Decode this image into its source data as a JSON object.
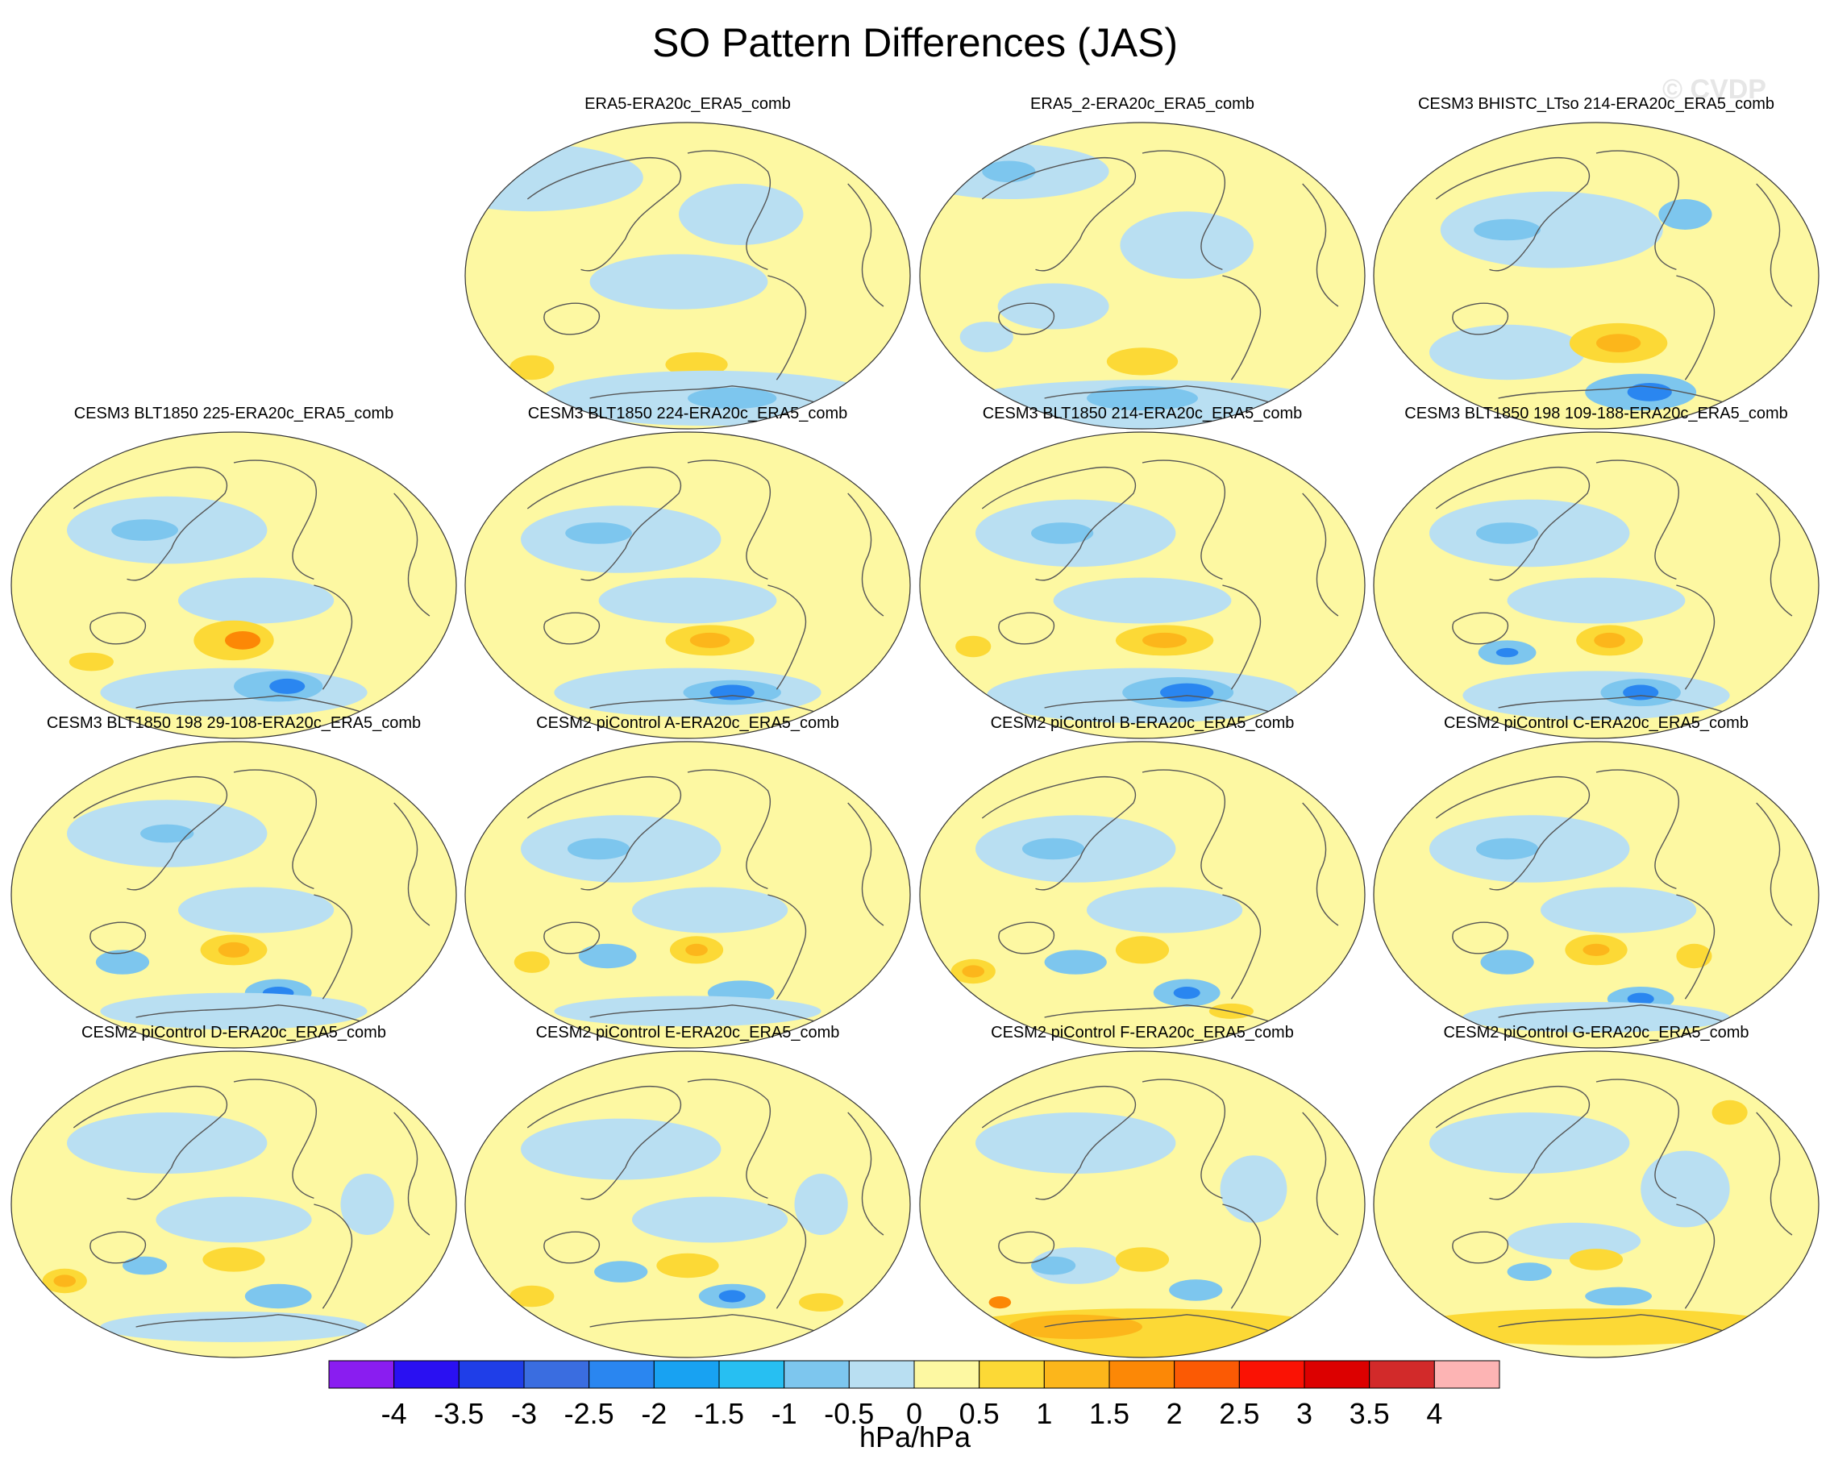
{
  "title": "SO Pattern Differences (JAS)",
  "watermark": "© CVDP",
  "colorbar": {
    "units": "hPa/hPa",
    "levels": [
      "-4",
      "-3.5",
      "-3",
      "-2.5",
      "-2",
      "-1.5",
      "-1",
      "-0.5",
      "0",
      "0.5",
      "1",
      "1.5",
      "2",
      "2.5",
      "3",
      "3.5",
      "4"
    ],
    "colors": [
      "#8a1df0",
      "#2a10f2",
      "#1f3ee8",
      "#3a6de0",
      "#2a86f0",
      "#18a2f2",
      "#27bff2",
      "#7dc6ee",
      "#b9dff2",
      "#fdf8a2",
      "#fcd936",
      "#fcb61b",
      "#fc8806",
      "#fb5a04",
      "#fa1204",
      "#dc0000",
      "#d22a2a",
      "#fdb4b4"
    ]
  },
  "panels": [
    {
      "title": "ERA5-ERA20c_ERA5_comb",
      "col": 1,
      "row": 0,
      "blobs": [
        [
          "#b9dff2",
          0.15,
          0.18,
          0.5,
          0.22
        ],
        [
          "#b9dff2",
          0.62,
          0.3,
          0.28,
          0.2
        ],
        [
          "#b9dff2",
          0.48,
          0.52,
          0.4,
          0.18
        ],
        [
          "#fcd936",
          0.52,
          0.79,
          0.14,
          0.08
        ],
        [
          "#b9dff2",
          0.55,
          0.9,
          0.75,
          0.18
        ],
        [
          "#7dc6ee",
          0.6,
          0.9,
          0.2,
          0.07
        ],
        [
          "#fcd936",
          0.15,
          0.8,
          0.1,
          0.08
        ]
      ]
    },
    {
      "title": "ERA5_2-ERA20c_ERA5_comb",
      "col": 2,
      "row": 0,
      "blobs": [
        [
          "#b9dff2",
          0.2,
          0.16,
          0.45,
          0.18
        ],
        [
          "#7dc6ee",
          0.2,
          0.16,
          0.12,
          0.07
        ],
        [
          "#b9dff2",
          0.6,
          0.4,
          0.3,
          0.22
        ],
        [
          "#b9dff2",
          0.3,
          0.6,
          0.25,
          0.15
        ],
        [
          "#fcd936",
          0.5,
          0.78,
          0.16,
          0.09
        ],
        [
          "#b9dff2",
          0.5,
          0.92,
          0.85,
          0.16
        ],
        [
          "#7dc6ee",
          0.5,
          0.9,
          0.25,
          0.08
        ],
        [
          "#b9dff2",
          0.15,
          0.7,
          0.12,
          0.1
        ]
      ]
    },
    {
      "title": "CESM3 BHISTC_LTso 214-ERA20c_ERA5_comb",
      "col": 3,
      "row": 0,
      "blobs": [
        [
          "#b9dff2",
          0.4,
          0.35,
          0.5,
          0.25
        ],
        [
          "#7dc6ee",
          0.3,
          0.35,
          0.15,
          0.07
        ],
        [
          "#7dc6ee",
          0.7,
          0.3,
          0.12,
          0.1
        ],
        [
          "#b9dff2",
          0.3,
          0.75,
          0.35,
          0.18
        ],
        [
          "#fcd936",
          0.55,
          0.72,
          0.22,
          0.13
        ],
        [
          "#fcb61b",
          0.55,
          0.72,
          0.1,
          0.06
        ],
        [
          "#7dc6ee",
          0.6,
          0.88,
          0.25,
          0.12
        ],
        [
          "#2a86f0",
          0.62,
          0.88,
          0.1,
          0.06
        ]
      ]
    },
    {
      "title": "CESM3 BLT1850 225-ERA20c_ERA5_comb",
      "col": 0,
      "row": 1,
      "blobs": [
        [
          "#b9dff2",
          0.35,
          0.32,
          0.45,
          0.22
        ],
        [
          "#7dc6ee",
          0.3,
          0.32,
          0.15,
          0.07
        ],
        [
          "#b9dff2",
          0.55,
          0.55,
          0.35,
          0.15
        ],
        [
          "#fcd936",
          0.5,
          0.68,
          0.18,
          0.13
        ],
        [
          "#fc8806",
          0.52,
          0.68,
          0.08,
          0.06
        ],
        [
          "#b9dff2",
          0.5,
          0.85,
          0.6,
          0.16
        ],
        [
          "#7dc6ee",
          0.6,
          0.83,
          0.2,
          0.1
        ],
        [
          "#2a86f0",
          0.62,
          0.83,
          0.08,
          0.05
        ],
        [
          "#fcd936",
          0.18,
          0.75,
          0.1,
          0.06
        ]
      ]
    },
    {
      "title": "CESM3 BLT1850 224-ERA20c_ERA5_comb",
      "col": 1,
      "row": 1,
      "blobs": [
        [
          "#b9dff2",
          0.35,
          0.35,
          0.45,
          0.22
        ],
        [
          "#7dc6ee",
          0.3,
          0.33,
          0.15,
          0.07
        ],
        [
          "#b9dff2",
          0.5,
          0.55,
          0.4,
          0.15
        ],
        [
          "#fcd936",
          0.55,
          0.68,
          0.2,
          0.1
        ],
        [
          "#fcb61b",
          0.55,
          0.68,
          0.09,
          0.05
        ],
        [
          "#b9dff2",
          0.5,
          0.85,
          0.6,
          0.16
        ],
        [
          "#7dc6ee",
          0.6,
          0.85,
          0.22,
          0.08
        ],
        [
          "#2a86f0",
          0.6,
          0.85,
          0.1,
          0.05
        ]
      ]
    },
    {
      "title": "CESM3 BLT1850 214-ERA20c_ERA5_comb",
      "col": 2,
      "row": 1,
      "blobs": [
        [
          "#b9dff2",
          0.35,
          0.33,
          0.45,
          0.22
        ],
        [
          "#7dc6ee",
          0.32,
          0.33,
          0.14,
          0.07
        ],
        [
          "#b9dff2",
          0.5,
          0.55,
          0.4,
          0.15
        ],
        [
          "#fcd936",
          0.55,
          0.68,
          0.22,
          0.1
        ],
        [
          "#fcb61b",
          0.55,
          0.68,
          0.1,
          0.05
        ],
        [
          "#b9dff2",
          0.5,
          0.86,
          0.7,
          0.18
        ],
        [
          "#7dc6ee",
          0.58,
          0.85,
          0.25,
          0.1
        ],
        [
          "#2a86f0",
          0.6,
          0.85,
          0.12,
          0.06
        ],
        [
          "#fcd936",
          0.12,
          0.7,
          0.08,
          0.07
        ]
      ]
    },
    {
      "title": "CESM3 BLT1850 198 109-188-ERA20c_ERA5_comb",
      "col": 3,
      "row": 1,
      "blobs": [
        [
          "#b9dff2",
          0.35,
          0.33,
          0.45,
          0.22
        ],
        [
          "#7dc6ee",
          0.3,
          0.33,
          0.14,
          0.07
        ],
        [
          "#b9dff2",
          0.5,
          0.55,
          0.4,
          0.15
        ],
        [
          "#7dc6ee",
          0.3,
          0.72,
          0.13,
          0.08
        ],
        [
          "#2a86f0",
          0.3,
          0.72,
          0.05,
          0.03
        ],
        [
          "#fcd936",
          0.53,
          0.68,
          0.15,
          0.1
        ],
        [
          "#fcb61b",
          0.53,
          0.68,
          0.07,
          0.05
        ],
        [
          "#b9dff2",
          0.5,
          0.86,
          0.6,
          0.16
        ],
        [
          "#7dc6ee",
          0.6,
          0.85,
          0.18,
          0.09
        ],
        [
          "#2a86f0",
          0.6,
          0.85,
          0.08,
          0.05
        ]
      ]
    },
    {
      "title": "CESM3 BLT1850 198 29-108-ERA20c_ERA5_comb",
      "col": 0,
      "row": 2,
      "blobs": [
        [
          "#b9dff2",
          0.35,
          0.3,
          0.45,
          0.22
        ],
        [
          "#7dc6ee",
          0.35,
          0.3,
          0.12,
          0.06
        ],
        [
          "#b9dff2",
          0.55,
          0.55,
          0.35,
          0.15
        ],
        [
          "#fcd936",
          0.5,
          0.68,
          0.15,
          0.1
        ],
        [
          "#fcb61b",
          0.5,
          0.68,
          0.07,
          0.05
        ],
        [
          "#7dc6ee",
          0.25,
          0.72,
          0.12,
          0.08
        ],
        [
          "#7dc6ee",
          0.6,
          0.82,
          0.15,
          0.09
        ],
        [
          "#2a86f0",
          0.6,
          0.82,
          0.07,
          0.04
        ],
        [
          "#b9dff2",
          0.5,
          0.88,
          0.6,
          0.12
        ]
      ]
    },
    {
      "title": "CESM2 piControl A-ERA20c_ERA5_comb",
      "col": 1,
      "row": 2,
      "blobs": [
        [
          "#b9dff2",
          0.35,
          0.35,
          0.45,
          0.22
        ],
        [
          "#7dc6ee",
          0.3,
          0.35,
          0.14,
          0.07
        ],
        [
          "#b9dff2",
          0.55,
          0.55,
          0.35,
          0.15
        ],
        [
          "#fcd936",
          0.52,
          0.68,
          0.12,
          0.09
        ],
        [
          "#fcb61b",
          0.52,
          0.68,
          0.05,
          0.04
        ],
        [
          "#7dc6ee",
          0.32,
          0.7,
          0.13,
          0.08
        ],
        [
          "#7dc6ee",
          0.62,
          0.82,
          0.15,
          0.08
        ],
        [
          "#fcd936",
          0.15,
          0.72,
          0.08,
          0.07
        ],
        [
          "#b9dff2",
          0.5,
          0.88,
          0.6,
          0.1
        ]
      ]
    },
    {
      "title": "CESM2 piControl B-ERA20c_ERA5_comb",
      "col": 2,
      "row": 2,
      "blobs": [
        [
          "#b9dff2",
          0.35,
          0.35,
          0.45,
          0.22
        ],
        [
          "#7dc6ee",
          0.3,
          0.35,
          0.14,
          0.07
        ],
        [
          "#b9dff2",
          0.55,
          0.55,
          0.35,
          0.15
        ],
        [
          "#fcd936",
          0.5,
          0.68,
          0.12,
          0.09
        ],
        [
          "#7dc6ee",
          0.35,
          0.72,
          0.14,
          0.08
        ],
        [
          "#7dc6ee",
          0.6,
          0.82,
          0.15,
          0.09
        ],
        [
          "#2a86f0",
          0.6,
          0.82,
          0.06,
          0.04
        ],
        [
          "#fcd936",
          0.12,
          0.75,
          0.1,
          0.08
        ],
        [
          "#fcb61b",
          0.12,
          0.75,
          0.05,
          0.04
        ],
        [
          "#fcd936",
          0.7,
          0.88,
          0.1,
          0.05
        ]
      ]
    },
    {
      "title": "CESM2 piControl C-ERA20c_ERA5_comb",
      "col": 3,
      "row": 2,
      "blobs": [
        [
          "#b9dff2",
          0.35,
          0.35,
          0.45,
          0.22
        ],
        [
          "#7dc6ee",
          0.3,
          0.35,
          0.14,
          0.07
        ],
        [
          "#b9dff2",
          0.55,
          0.55,
          0.35,
          0.15
        ],
        [
          "#fcd936",
          0.5,
          0.68,
          0.14,
          0.1
        ],
        [
          "#fcb61b",
          0.5,
          0.68,
          0.06,
          0.04
        ],
        [
          "#7dc6ee",
          0.3,
          0.72,
          0.12,
          0.08
        ],
        [
          "#7dc6ee",
          0.6,
          0.84,
          0.15,
          0.08
        ],
        [
          "#2a86f0",
          0.6,
          0.84,
          0.06,
          0.04
        ],
        [
          "#fcd936",
          0.72,
          0.7,
          0.08,
          0.08
        ],
        [
          "#b9dff2",
          0.5,
          0.9,
          0.6,
          0.1
        ]
      ]
    },
    {
      "title": "CESM2 piControl D-ERA20c_ERA5_comb",
      "col": 0,
      "row": 3,
      "blobs": [
        [
          "#b9dff2",
          0.35,
          0.3,
          0.45,
          0.2
        ],
        [
          "#b9dff2",
          0.5,
          0.55,
          0.35,
          0.15
        ],
        [
          "#b9dff2",
          0.8,
          0.5,
          0.12,
          0.2
        ],
        [
          "#7dc6ee",
          0.3,
          0.7,
          0.1,
          0.06
        ],
        [
          "#fcd936",
          0.5,
          0.68,
          0.14,
          0.08
        ],
        [
          "#7dc6ee",
          0.6,
          0.8,
          0.15,
          0.08
        ],
        [
          "#fcd936",
          0.12,
          0.75,
          0.1,
          0.08
        ],
        [
          "#fcb61b",
          0.12,
          0.75,
          0.05,
          0.04
        ],
        [
          "#b9dff2",
          0.5,
          0.9,
          0.6,
          0.1
        ]
      ]
    },
    {
      "title": "CESM2 piControl E-ERA20c_ERA5_comb",
      "col": 1,
      "row": 3,
      "blobs": [
        [
          "#b9dff2",
          0.35,
          0.32,
          0.45,
          0.2
        ],
        [
          "#b9dff2",
          0.55,
          0.55,
          0.35,
          0.15
        ],
        [
          "#b9dff2",
          0.8,
          0.5,
          0.12,
          0.2
        ],
        [
          "#7dc6ee",
          0.35,
          0.72,
          0.12,
          0.07
        ],
        [
          "#fcd936",
          0.5,
          0.7,
          0.14,
          0.08
        ],
        [
          "#7dc6ee",
          0.6,
          0.8,
          0.15,
          0.08
        ],
        [
          "#2a86f0",
          0.6,
          0.8,
          0.06,
          0.04
        ],
        [
          "#fcd936",
          0.15,
          0.8,
          0.1,
          0.07
        ],
        [
          "#fcd936",
          0.8,
          0.82,
          0.1,
          0.06
        ]
      ]
    },
    {
      "title": "CESM2 piControl F-ERA20c_ERA5_comb",
      "col": 2,
      "row": 3,
      "blobs": [
        [
          "#b9dff2",
          0.35,
          0.3,
          0.45,
          0.2
        ],
        [
          "#b9dff2",
          0.75,
          0.45,
          0.15,
          0.22
        ],
        [
          "#b9dff2",
          0.35,
          0.7,
          0.2,
          0.12
        ],
        [
          "#7dc6ee",
          0.3,
          0.7,
          0.1,
          0.06
        ],
        [
          "#fcd936",
          0.5,
          0.68,
          0.12,
          0.08
        ],
        [
          "#7dc6ee",
          0.62,
          0.78,
          0.12,
          0.07
        ],
        [
          "#fcd936",
          0.5,
          0.92,
          0.9,
          0.16
        ],
        [
          "#fcb61b",
          0.35,
          0.9,
          0.3,
          0.08
        ],
        [
          "#fc8806",
          0.18,
          0.82,
          0.05,
          0.04
        ]
      ]
    },
    {
      "title": "CESM2 piControl G-ERA20c_ERA5_comb",
      "col": 3,
      "row": 3,
      "blobs": [
        [
          "#b9dff2",
          0.35,
          0.3,
          0.45,
          0.2
        ],
        [
          "#b9dff2",
          0.7,
          0.45,
          0.2,
          0.25
        ],
        [
          "#b9dff2",
          0.45,
          0.62,
          0.3,
          0.12
        ],
        [
          "#7dc6ee",
          0.35,
          0.72,
          0.1,
          0.06
        ],
        [
          "#fcd936",
          0.5,
          0.68,
          0.12,
          0.07
        ],
        [
          "#fcd936",
          0.5,
          0.9,
          0.85,
          0.12
        ],
        [
          "#7dc6ee",
          0.55,
          0.8,
          0.15,
          0.06
        ],
        [
          "#fcd936",
          0.8,
          0.2,
          0.08,
          0.08
        ]
      ]
    }
  ]
}
